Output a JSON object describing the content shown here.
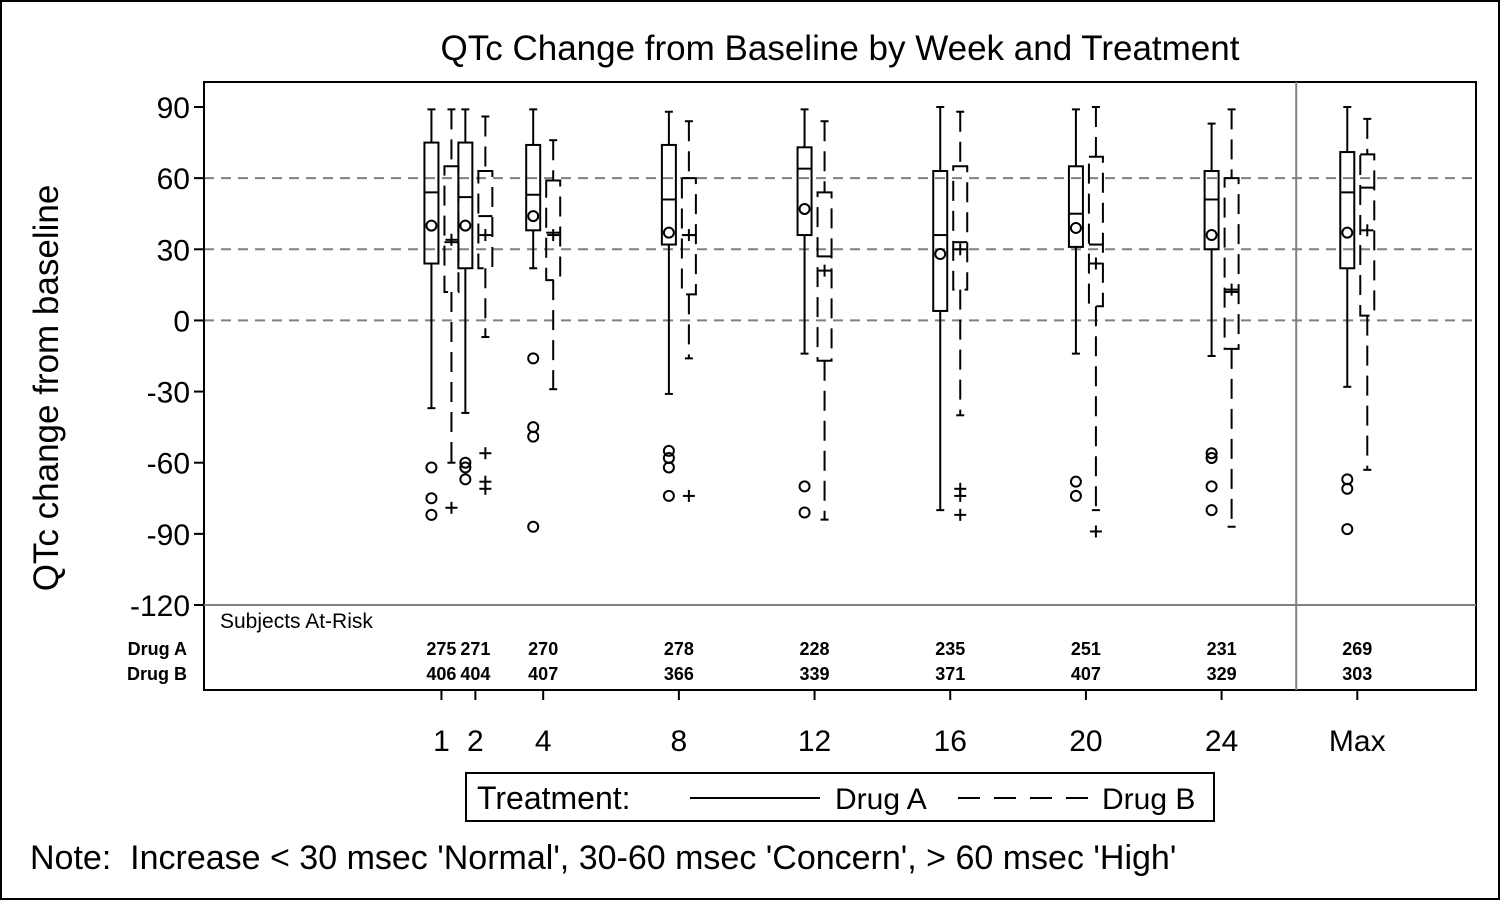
{
  "chart_data": {
    "type": "box",
    "title": "QTc Change from Baseline by Week and Treatment",
    "xlabel": "",
    "ylabel": "QTc change from baseline",
    "ylim": [
      -120,
      90
    ],
    "yticks": [
      90,
      60,
      30,
      0,
      -30,
      -60,
      -90,
      -120
    ],
    "reference_lines": [
      0,
      30,
      60
    ],
    "categories": [
      "1",
      "2",
      "4",
      "8",
      "12",
      "16",
      "20",
      "24",
      "Max"
    ],
    "category_positions": [
      1,
      2,
      4,
      8,
      12,
      16,
      20,
      24,
      28
    ],
    "xlim": [
      -6,
      31.5
    ],
    "divider_x": 26.2,
    "colors": {
      "axis": "#000000",
      "reference_line": "#808080",
      "divider": "#808080"
    },
    "series": [
      {
        "name": "Drug A",
        "line_style": "solid",
        "mean_marker": "circle",
        "boxes": [
          {
            "x": 1,
            "q1": 24,
            "median": 54,
            "q3": 75,
            "mean": 40,
            "whisker_low": -37,
            "whisker_high": 89,
            "outliers": [
              -62,
              -75,
              -82
            ]
          },
          {
            "x": 2,
            "q1": 22,
            "median": 52,
            "q3": 75,
            "mean": 40,
            "whisker_low": -39,
            "whisker_high": 89,
            "outliers": [
              -60,
              -62,
              -67
            ]
          },
          {
            "x": 4,
            "q1": 38,
            "median": 53,
            "q3": 74,
            "mean": 44,
            "whisker_low": 22,
            "whisker_high": 89,
            "outliers": [
              -16,
              -45,
              -49,
              -87
            ]
          },
          {
            "x": 8,
            "q1": 32,
            "median": 51,
            "q3": 74,
            "mean": 37,
            "whisker_low": -31,
            "whisker_high": 88,
            "outliers": [
              -55,
              -58,
              -62,
              -74
            ]
          },
          {
            "x": 12,
            "q1": 36,
            "median": 64,
            "q3": 73,
            "mean": 47,
            "whisker_low": -14,
            "whisker_high": 89,
            "outliers": [
              -70,
              -81
            ]
          },
          {
            "x": 16,
            "q1": 4,
            "median": 36,
            "q3": 63,
            "mean": 28,
            "whisker_low": -80,
            "whisker_high": 90,
            "outliers": []
          },
          {
            "x": 20,
            "q1": 31,
            "median": 45,
            "q3": 65,
            "mean": 39,
            "whisker_low": -14,
            "whisker_high": 89,
            "outliers": [
              -68,
              -74
            ]
          },
          {
            "x": 24,
            "q1": 30,
            "median": 51,
            "q3": 63,
            "mean": 36,
            "whisker_low": -15,
            "whisker_high": 83,
            "outliers": [
              -56,
              -58,
              -70,
              -80
            ]
          },
          {
            "x": 28,
            "q1": 22,
            "median": 54,
            "q3": 71,
            "mean": 37,
            "whisker_low": -28,
            "whisker_high": 90,
            "outliers": [
              -67,
              -71,
              -88
            ]
          }
        ]
      },
      {
        "name": "Drug B",
        "line_style": "dashed",
        "mean_marker": "plus",
        "boxes": [
          {
            "x": 1,
            "q1": 12,
            "median": 33,
            "q3": 65,
            "mean": 34,
            "whisker_low": -60,
            "whisker_high": 89,
            "outliers": [
              -79
            ]
          },
          {
            "x": 2,
            "q1": 22,
            "median": 44,
            "q3": 63,
            "mean": 36,
            "whisker_low": -7,
            "whisker_high": 86,
            "outliers": [
              -56,
              -68,
              -71
            ]
          },
          {
            "x": 4,
            "q1": 17,
            "median": 37,
            "q3": 59,
            "mean": 36,
            "whisker_low": -29,
            "whisker_high": 76,
            "outliers": []
          },
          {
            "x": 8,
            "q1": 11,
            "median": 36,
            "q3": 60,
            "mean": 36,
            "whisker_low": -16,
            "whisker_high": 84,
            "outliers": [
              -74
            ]
          },
          {
            "x": 12,
            "q1": -17,
            "median": 27,
            "q3": 54,
            "mean": 21,
            "whisker_low": -84,
            "whisker_high": 84,
            "outliers": []
          },
          {
            "x": 16,
            "q1": 13,
            "median": 33,
            "q3": 65,
            "mean": 30,
            "whisker_low": -40,
            "whisker_high": 88,
            "outliers": [
              -71,
              -74,
              -82
            ]
          },
          {
            "x": 20,
            "q1": 6,
            "median": 32,
            "q3": 69,
            "mean": 24,
            "whisker_low": -80,
            "whisker_high": 90,
            "outliers": [
              -89
            ]
          },
          {
            "x": 24,
            "q1": -12,
            "median": 12,
            "q3": 60,
            "mean": 13,
            "whisker_low": -87,
            "whisker_high": 89,
            "outliers": []
          },
          {
            "x": 28,
            "q1": 2,
            "median": 56,
            "q3": 70,
            "mean": 38,
            "whisker_low": -63,
            "whisker_high": 85,
            "outliers": []
          }
        ]
      }
    ],
    "at_risk": {
      "heading": "Subjects At-Risk",
      "rows": [
        {
          "label": "Drug A",
          "values": [
            "275",
            "271",
            "270",
            "278",
            "228",
            "235",
            "251",
            "231",
            "269"
          ]
        },
        {
          "label": "Drug B",
          "values": [
            "406",
            "404",
            "407",
            "366",
            "339",
            "371",
            "407",
            "329",
            "303"
          ]
        }
      ]
    },
    "legend": {
      "placement": "bottom-center",
      "title": "Treatment:",
      "entries": [
        "Drug A",
        "Drug B"
      ]
    },
    "note": "Note:  Increase < 30 msec 'Normal', 30-60 msec 'Concern', > 60 msec 'High'"
  }
}
